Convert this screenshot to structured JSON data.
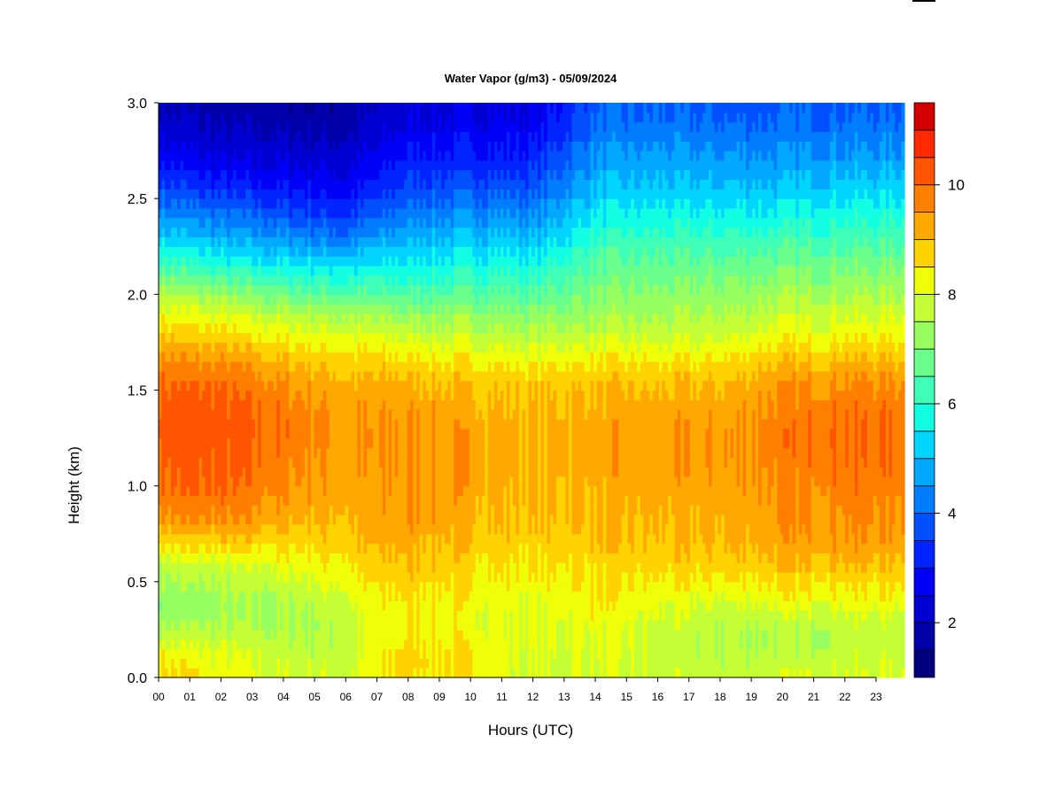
{
  "chart_data": {
    "type": "heatmap",
    "title": "Water Vapor (g/m3) - 05/09/2024",
    "xlabel": "Hours (UTC)",
    "ylabel": "Height (km)",
    "x_tick_labels": [
      "00",
      "01",
      "02",
      "03",
      "04",
      "05",
      "06",
      "07",
      "08",
      "09",
      "10",
      "11",
      "12",
      "13",
      "14",
      "15",
      "16",
      "17",
      "18",
      "19",
      "20",
      "21",
      "22",
      "23"
    ],
    "y_tick_labels": [
      "0.0",
      "0.5",
      "1.0",
      "1.5",
      "2.0",
      "2.5",
      "3.0"
    ],
    "y_ticks": [
      0.0,
      0.5,
      1.0,
      1.5,
      2.0,
      2.5,
      3.0
    ],
    "xlim": [
      0,
      24
    ],
    "ylim": [
      0,
      3.0
    ],
    "colorbar": {
      "tick_labels": [
        "2",
        "4",
        "6",
        "8",
        "10"
      ],
      "ticks": [
        2,
        4,
        6,
        8,
        10
      ],
      "range": [
        1.0,
        11.5
      ],
      "levels": [
        1.0,
        1.5,
        2.0,
        2.5,
        3.0,
        3.5,
        4.0,
        4.5,
        5.0,
        5.5,
        6.0,
        6.5,
        7.0,
        7.5,
        8.0,
        8.5,
        9.0,
        9.5,
        10.0,
        10.5,
        11.0,
        11.5
      ],
      "colors": [
        "#00007f",
        "#0000a8",
        "#0000d0",
        "#0000f6",
        "#0024ff",
        "#0050ff",
        "#007cff",
        "#00a8ff",
        "#00d4ff",
        "#13ffe3",
        "#3fffb8",
        "#6bff8b",
        "#97ff60",
        "#c3ff34",
        "#efff08",
        "#ffd300",
        "#ffa900",
        "#ff7f00",
        "#ff5400",
        "#ff2a00",
        "#d40000",
        "#a80000"
      ]
    },
    "height_km": [
      0.0,
      0.1,
      0.2,
      0.3,
      0.4,
      0.5,
      0.6,
      0.7,
      0.8,
      0.9,
      1.0,
      1.1,
      1.2,
      1.3,
      1.4,
      1.5,
      1.6,
      1.7,
      1.8,
      1.9,
      2.0,
      2.1,
      2.2,
      2.3,
      2.4,
      2.5,
      2.6,
      2.7,
      2.8,
      2.9,
      3.0
    ],
    "hour_utc": [
      0,
      2,
      4,
      6,
      8,
      10,
      12,
      14,
      16,
      18,
      20,
      22,
      24
    ],
    "values_g_m3": [
      [
        8.8,
        8.3,
        8.0,
        8.0,
        8.7,
        8.4,
        7.9,
        7.9,
        7.8,
        7.8,
        7.9,
        8.0,
        8.0
      ],
      [
        8.5,
        8.1,
        7.8,
        7.7,
        8.8,
        8.5,
        7.9,
        7.9,
        7.8,
        7.6,
        7.7,
        7.8,
        7.8
      ],
      [
        7.8,
        7.8,
        7.6,
        7.6,
        8.6,
        8.3,
        8.0,
        8.1,
        7.8,
        7.5,
        7.6,
        7.7,
        7.7
      ],
      [
        7.3,
        7.4,
        7.4,
        7.7,
        8.5,
        8.2,
        8.0,
        8.3,
        7.9,
        7.6,
        7.7,
        7.8,
        7.8
      ],
      [
        7.2,
        7.3,
        7.5,
        8.0,
        8.6,
        8.3,
        8.1,
        8.4,
        8.1,
        8.0,
        8.2,
        8.3,
        8.3
      ],
      [
        7.4,
        7.5,
        7.8,
        8.2,
        8.8,
        8.5,
        8.3,
        8.5,
        8.4,
        8.4,
        8.6,
        8.6,
        8.6
      ],
      [
        7.8,
        7.9,
        8.2,
        8.5,
        9.0,
        8.7,
        8.5,
        8.7,
        8.7,
        8.8,
        9.0,
        9.1,
        9.0
      ],
      [
        8.6,
        8.7,
        8.6,
        8.8,
        9.2,
        8.9,
        8.7,
        8.9,
        8.9,
        9.0,
        9.3,
        9.4,
        9.3
      ],
      [
        9.3,
        9.4,
        9.1,
        9.0,
        9.4,
        9.1,
        8.9,
        9.0,
        9.0,
        9.1,
        9.4,
        9.6,
        9.5
      ],
      [
        9.7,
        9.8,
        9.4,
        9.1,
        9.5,
        9.2,
        9.0,
        9.1,
        9.1,
        9.2,
        9.5,
        9.7,
        9.6
      ],
      [
        10.0,
        10.0,
        9.6,
        9.2,
        9.5,
        9.3,
        9.0,
        9.2,
        9.2,
        9.3,
        9.6,
        9.8,
        9.7
      ],
      [
        10.1,
        10.1,
        9.7,
        9.3,
        9.5,
        9.3,
        9.1,
        9.3,
        9.3,
        9.4,
        9.7,
        9.9,
        9.8
      ],
      [
        10.2,
        10.2,
        9.8,
        9.4,
        9.5,
        9.3,
        9.1,
        9.3,
        9.3,
        9.4,
        9.8,
        10.0,
        9.9
      ],
      [
        10.3,
        10.3,
        9.9,
        9.4,
        9.5,
        9.3,
        9.1,
        9.3,
        9.3,
        9.4,
        9.8,
        10.0,
        9.9
      ],
      [
        10.2,
        10.2,
        9.8,
        9.4,
        9.4,
        9.2,
        9.0,
        9.2,
        9.2,
        9.3,
        9.7,
        9.9,
        9.8
      ],
      [
        10.1,
        10.0,
        9.6,
        9.2,
        9.2,
        9.0,
        8.9,
        9.0,
        9.0,
        9.1,
        9.5,
        9.7,
        9.6
      ],
      [
        9.8,
        9.7,
        9.3,
        8.9,
        8.9,
        8.7,
        8.6,
        8.7,
        8.7,
        8.8,
        9.2,
        9.4,
        9.3
      ],
      [
        9.3,
        9.2,
        8.8,
        8.5,
        8.4,
        8.2,
        8.1,
        8.2,
        8.2,
        8.3,
        8.7,
        8.8,
        8.8
      ],
      [
        8.8,
        8.6,
        8.2,
        8.0,
        7.8,
        7.7,
        7.6,
        7.7,
        7.7,
        7.8,
        8.2,
        8.3,
        8.3
      ],
      [
        8.3,
        8.0,
        7.6,
        7.4,
        7.2,
        7.2,
        7.1,
        7.3,
        7.4,
        7.5,
        7.8,
        7.9,
        7.9
      ],
      [
        7.6,
        7.2,
        6.8,
        6.6,
        6.5,
        6.6,
        6.5,
        7.0,
        7.1,
        7.2,
        7.4,
        7.5,
        7.5
      ],
      [
        6.8,
        6.3,
        6.0,
        5.8,
        5.9,
        6.1,
        6.0,
        6.7,
        6.8,
        6.9,
        7.0,
        7.1,
        7.1
      ],
      [
        6.0,
        5.5,
        5.2,
        5.0,
        5.4,
        5.6,
        5.5,
        6.4,
        6.5,
        6.5,
        6.6,
        6.7,
        6.7
      ],
      [
        5.3,
        4.8,
        4.5,
        4.2,
        4.9,
        5.1,
        5.0,
        6.0,
        6.1,
        6.1,
        6.2,
        6.3,
        6.3
      ],
      [
        4.6,
        4.2,
        3.9,
        3.5,
        4.4,
        4.6,
        4.5,
        5.6,
        5.7,
        5.7,
        5.7,
        5.9,
        5.9
      ],
      [
        4.0,
        3.6,
        3.3,
        3.0,
        3.9,
        4.1,
        4.0,
        5.2,
        5.3,
        5.3,
        5.3,
        5.5,
        5.5
      ],
      [
        3.4,
        3.0,
        2.8,
        2.6,
        3.5,
        3.6,
        3.6,
        4.9,
        5.0,
        4.9,
        4.9,
        5.1,
        5.1
      ],
      [
        2.9,
        2.5,
        2.4,
        2.3,
        3.1,
        3.2,
        3.2,
        4.6,
        4.7,
        4.6,
        4.6,
        4.7,
        4.7
      ],
      [
        2.5,
        2.2,
        2.1,
        2.0,
        2.8,
        2.9,
        2.9,
        4.3,
        4.4,
        4.3,
        4.3,
        4.4,
        4.4
      ],
      [
        2.2,
        1.9,
        1.8,
        1.8,
        2.5,
        2.6,
        2.6,
        4.0,
        4.1,
        4.0,
        4.0,
        4.1,
        4.1
      ],
      [
        2.0,
        1.7,
        1.6,
        1.6,
        2.3,
        2.4,
        2.4,
        3.8,
        3.9,
        3.8,
        3.8,
        3.9,
        3.9
      ]
    ]
  }
}
